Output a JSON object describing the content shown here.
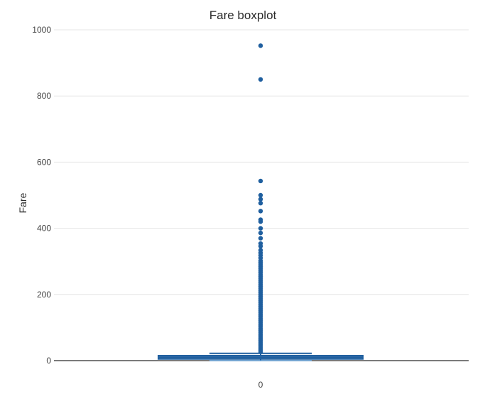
{
  "chart_data": {
    "type": "box",
    "title": "Fare boxplot",
    "xlabel": "",
    "ylabel": "Fare",
    "x_tick_labels": [
      "0"
    ],
    "y_ticks": [
      0,
      200,
      400,
      600,
      800,
      1000
    ],
    "ylim": [
      0,
      1000
    ],
    "grid": true,
    "legend": "none",
    "colors": {
      "box": "#1f5f9f",
      "points": "#1f5f9f",
      "grid": "#e6e6e6",
      "zero_line": "#2a2a2a"
    },
    "boxes": [
      {
        "category": "0",
        "min": 0,
        "q1": 7,
        "median": 10,
        "q3": 13,
        "upper_whisker": 22,
        "outliers": [
          952,
          850,
          543,
          500,
          488,
          476,
          452,
          426,
          420,
          400,
          386,
          370,
          354,
          346,
          334,
          326,
          318,
          310,
          302,
          296,
          290,
          284,
          278,
          272,
          266,
          260,
          254,
          248,
          242,
          236,
          230,
          224,
          218,
          212,
          206,
          200,
          194,
          188,
          182,
          176,
          170,
          164,
          158,
          152,
          146,
          140,
          134,
          128,
          122,
          116,
          110,
          104,
          98,
          92,
          86,
          80,
          74,
          68,
          62,
          56,
          50,
          44,
          38,
          32,
          26
        ]
      }
    ]
  }
}
